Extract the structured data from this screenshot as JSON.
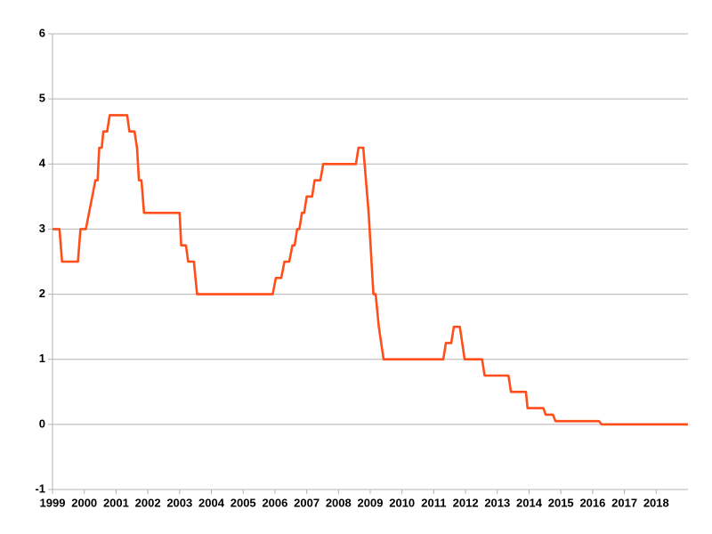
{
  "chart_data": {
    "type": "line",
    "x": [
      1999.0,
      1999.22,
      1999.3,
      1999.8,
      1999.88,
      2000.05,
      2000.35,
      2000.42,
      2000.47,
      2000.55,
      2000.6,
      2000.72,
      2000.8,
      2001.35,
      2001.42,
      2001.58,
      2001.66,
      2001.72,
      2001.8,
      2001.88,
      2003.0,
      2003.05,
      2003.2,
      2003.27,
      2003.45,
      2003.55,
      2005.93,
      2006.03,
      2006.2,
      2006.3,
      2006.45,
      2006.55,
      2006.62,
      2006.7,
      2006.77,
      2006.85,
      2006.92,
      2007.0,
      2007.17,
      2007.25,
      2007.43,
      2007.52,
      2008.55,
      2008.63,
      2008.78,
      2008.95,
      2009.1,
      2009.17,
      2009.27,
      2009.42,
      2011.3,
      2011.38,
      2011.55,
      2011.63,
      2011.82,
      2011.97,
      2012.52,
      2012.6,
      2013.35,
      2013.43,
      2013.9,
      2013.95,
      2014.45,
      2014.52,
      2014.75,
      2014.83,
      2016.2,
      2016.28,
      2019.0
    ],
    "series": [
      {
        "color": "#ff4e1a",
        "values": [
          3,
          3,
          2.5,
          2.5,
          3,
          3,
          3.75,
          3.75,
          4.25,
          4.25,
          4.5,
          4.5,
          4.75,
          4.75,
          4.5,
          4.5,
          4.25,
          3.75,
          3.75,
          3.25,
          3.25,
          2.75,
          2.75,
          2.5,
          2.5,
          2.0,
          2.0,
          2.25,
          2.25,
          2.5,
          2.5,
          2.75,
          2.75,
          3.0,
          3.0,
          3.25,
          3.25,
          3.5,
          3.5,
          3.75,
          3.75,
          4.0,
          4.0,
          4.25,
          4.25,
          3.25,
          2.0,
          2.0,
          1.5,
          1.0,
          1.0,
          1.25,
          1.25,
          1.5,
          1.5,
          1.0,
          1.0,
          0.75,
          0.75,
          0.5,
          0.5,
          0.25,
          0.25,
          0.15,
          0.15,
          0.05,
          0.05,
          0,
          0
        ]
      }
    ],
    "xlim": [
      1999,
      2019
    ],
    "xticks": [
      1999,
      2000,
      2001,
      2002,
      2003,
      2004,
      2005,
      2006,
      2007,
      2008,
      2009,
      2010,
      2011,
      2012,
      2013,
      2014,
      2015,
      2016,
      2017,
      2018
    ],
    "ylim": [
      -1,
      6
    ],
    "yticks": [
      -1,
      0,
      1,
      2,
      3,
      4,
      5,
      6
    ],
    "grid": true
  }
}
